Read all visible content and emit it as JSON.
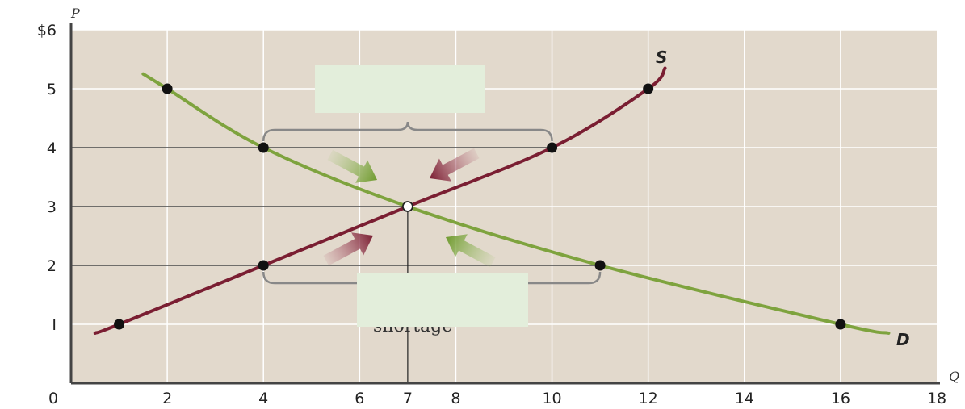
{
  "chart_data": {
    "type": "line",
    "x_axis_label": "Q",
    "y_axis_label": "P",
    "xlim": [
      0,
      18
    ],
    "ylim": [
      0,
      6
    ],
    "x_ticks": [
      "0",
      "2",
      "4",
      "6",
      "7",
      "8",
      "10",
      "12",
      "14",
      "16",
      "18"
    ],
    "y_ticks": [
      "I",
      "2",
      "3",
      "4",
      "5",
      "$6"
    ],
    "grid": true,
    "series": [
      {
        "name": "S",
        "color": "#7a1e32",
        "points": [
          [
            1,
            1
          ],
          [
            4,
            2
          ],
          [
            7,
            3
          ],
          [
            10,
            4
          ],
          [
            12,
            5
          ]
        ]
      },
      {
        "name": "D",
        "color": "#7ea33e",
        "points": [
          [
            2,
            5
          ],
          [
            4,
            4
          ],
          [
            7,
            3
          ],
          [
            11,
            2
          ],
          [
            16,
            1
          ]
        ]
      }
    ],
    "equilibrium": {
      "x": 7,
      "y": 3
    },
    "annotations": {
      "surplus_price": 4,
      "surplus_range": [
        4,
        10
      ],
      "shortage_price": 2,
      "shortage_range": [
        4,
        11
      ],
      "shortage_text_partial": "shortage"
    }
  }
}
